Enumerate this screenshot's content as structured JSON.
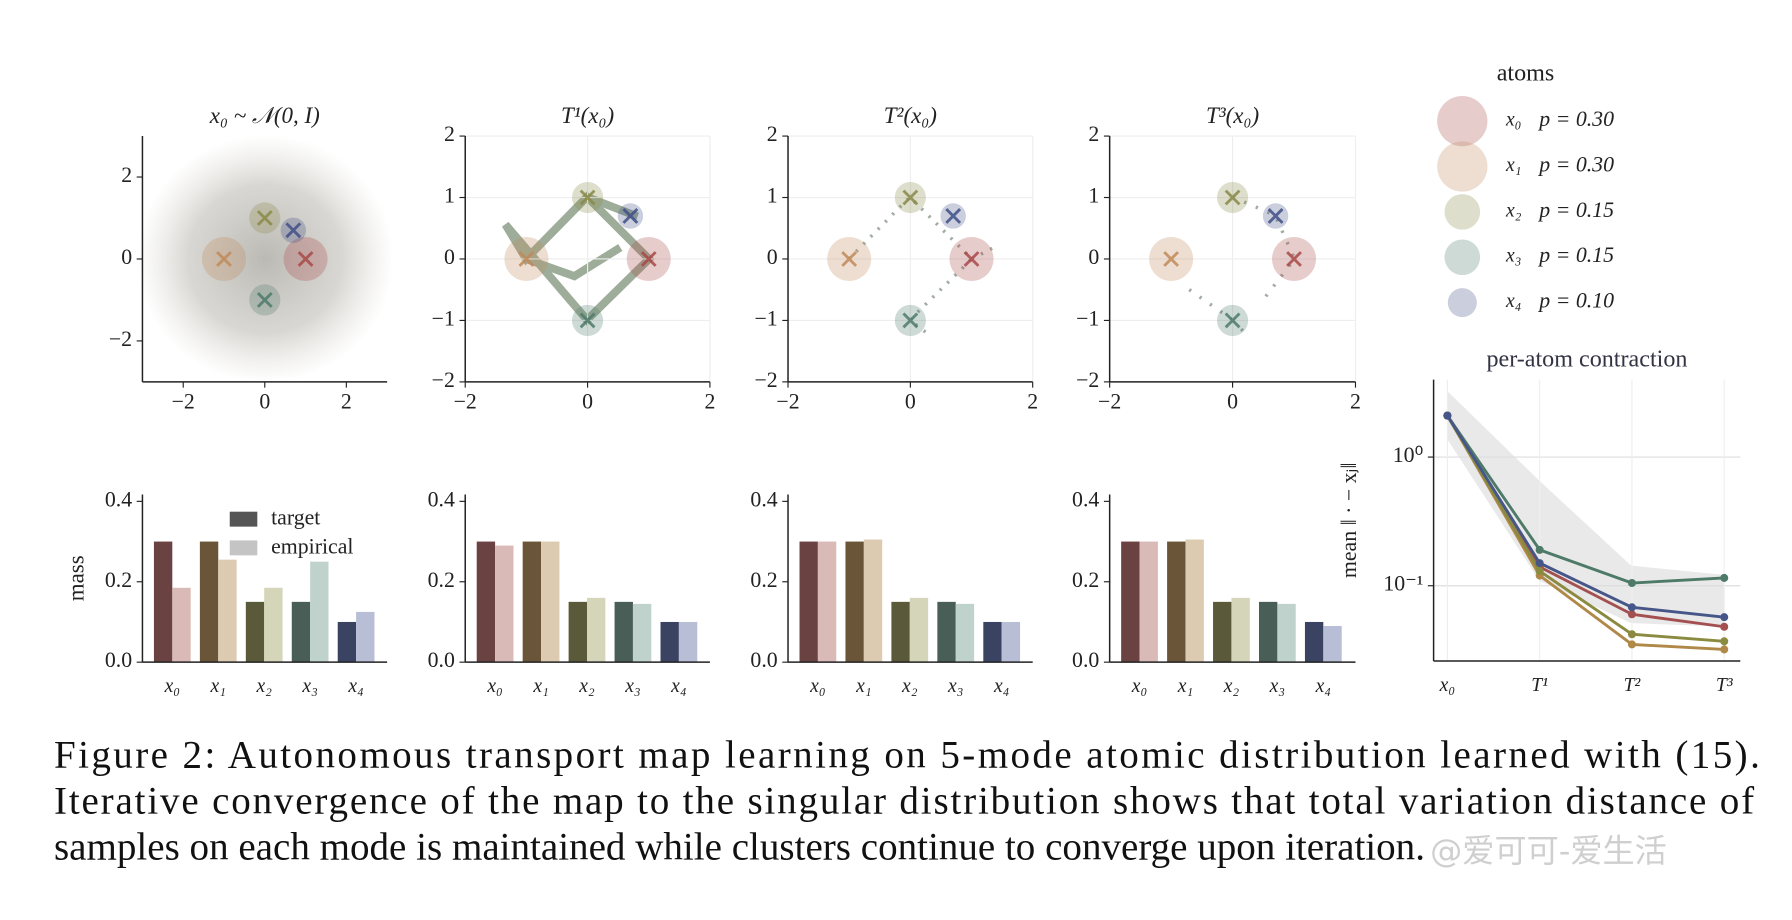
{
  "chart_data": [
    {
      "type": "scatter",
      "title": "x₀ ~ 𝒩(0, I)",
      "x": [
        1,
        -1,
        0,
        0,
        0.7
      ],
      "values": [
        0,
        0,
        1,
        -1,
        0.7
      ],
      "sizes": [
        0.3,
        0.3,
        0.15,
        0.15,
        0.1
      ],
      "colors": [
        "#a84848",
        "#c08a58",
        "#8a8a48",
        "#4e7a6a",
        "#3f4f86"
      ],
      "xlim": [
        -3,
        3
      ],
      "ylim": [
        -3,
        3
      ],
      "xticks": [
        {
          "value": -2,
          "label": "−2"
        },
        0,
        2
      ],
      "yticks": [
        {
          "value": -2,
          "label": "−2"
        },
        0,
        2
      ],
      "grid": false
    },
    {
      "type": "scatter",
      "title": "T¹(x₀)",
      "x": [
        1,
        -1,
        0,
        0,
        0.7
      ],
      "values": [
        0,
        0,
        1,
        -1,
        0.7
      ],
      "sizes": [
        0.3,
        0.3,
        0.15,
        0.15,
        0.1
      ],
      "colors": [
        "#a84848",
        "#c08a58",
        "#8a8a48",
        "#4e7a6a",
        "#3f4f86"
      ],
      "xlim": [
        -2,
        2
      ],
      "ylim": [
        -2,
        2
      ],
      "xticks": [
        {
          "value": -2,
          "label": "−2"
        },
        0,
        2
      ],
      "yticks": [
        {
          "value": -2,
          "label": "−2"
        },
        {
          "value": -1,
          "label": "−1"
        },
        0,
        1,
        2
      ],
      "grid": true
    },
    {
      "type": "scatter",
      "title": "T²(x₀)",
      "x": [
        1,
        -1,
        0,
        0,
        0.7
      ],
      "values": [
        0,
        0,
        1,
        -1,
        0.7
      ],
      "sizes": [
        0.3,
        0.3,
        0.15,
        0.15,
        0.1
      ],
      "colors": [
        "#a84848",
        "#c08a58",
        "#8a8a48",
        "#4e7a6a",
        "#3f4f86"
      ],
      "xlim": [
        -2,
        2
      ],
      "ylim": [
        -2,
        2
      ],
      "xticks": [
        {
          "value": -2,
          "label": "−2"
        },
        0,
        2
      ],
      "yticks": [
        {
          "value": -2,
          "label": "−2"
        },
        {
          "value": -1,
          "label": "−1"
        },
        0,
        1,
        2
      ],
      "grid": true
    },
    {
      "type": "scatter",
      "title": "T³(x₀)",
      "x": [
        1,
        -1,
        0,
        0,
        0.7
      ],
      "values": [
        0,
        0,
        1,
        -1,
        0.7
      ],
      "sizes": [
        0.3,
        0.3,
        0.15,
        0.15,
        0.1
      ],
      "colors": [
        "#a84848",
        "#c08a58",
        "#8a8a48",
        "#4e7a6a",
        "#3f4f86"
      ],
      "xlim": [
        -2,
        2
      ],
      "ylim": [
        -2,
        2
      ],
      "xticks": [
        {
          "value": -2,
          "label": "−2"
        },
        0,
        2
      ],
      "yticks": [
        {
          "value": -2,
          "label": "−2"
        },
        {
          "value": -1,
          "label": "−1"
        },
        0,
        1,
        2
      ],
      "grid": true
    },
    {
      "type": "bar",
      "y_label": "mass",
      "categories": [
        "x₀",
        "x₁",
        "x₂",
        "x₃",
        "x₄"
      ],
      "ylim": [
        0,
        0.4
      ],
      "yticks": [
        {
          "value": 0,
          "label": "0.0"
        },
        {
          "value": 0.2,
          "label": "0.2"
        },
        {
          "value": 0.4,
          "label": "0.4"
        }
      ],
      "legend": "upper right",
      "series": [
        {
          "name": "target",
          "color": "#555555",
          "colors": [
            "#6b4242",
            "#6b5538",
            "#5a5a3a",
            "#4a5e58",
            "#3a4462"
          ],
          "values": [
            0.3,
            0.3,
            0.15,
            0.15,
            0.1
          ]
        },
        {
          "name": "empirical",
          "color": "#c4c4c4",
          "colors": [
            "#d9bab7",
            "#ddcbb1",
            "#d5d5b9",
            "#c0d2cc",
            "#b9bed7"
          ],
          "values": [
            0.185,
            0.255,
            0.185,
            0.25,
            0.125
          ]
        }
      ]
    },
    {
      "type": "bar",
      "categories": [
        "x₀",
        "x₁",
        "x₂",
        "x₃",
        "x₄"
      ],
      "ylim": [
        0,
        0.4
      ],
      "yticks": [
        {
          "value": 0,
          "label": "0.0"
        },
        {
          "value": 0.2,
          "label": "0.2"
        },
        {
          "value": 0.4,
          "label": "0.4"
        }
      ],
      "series": [
        {
          "color": "#555555",
          "colors": [
            "#6b4242",
            "#6b5538",
            "#5a5a3a",
            "#4a5e58",
            "#3a4462"
          ],
          "values": [
            0.3,
            0.3,
            0.15,
            0.15,
            0.1
          ]
        },
        {
          "color": "#c4c4c4",
          "colors": [
            "#d9bab7",
            "#ddcbb1",
            "#d5d5b9",
            "#c0d2cc",
            "#b9bed7"
          ],
          "values": [
            0.29,
            0.3,
            0.16,
            0.145,
            0.1
          ]
        }
      ]
    },
    {
      "type": "bar",
      "categories": [
        "x₀",
        "x₁",
        "x₂",
        "x₃",
        "x₄"
      ],
      "ylim": [
        0,
        0.4
      ],
      "yticks": [
        {
          "value": 0,
          "label": "0.0"
        },
        {
          "value": 0.2,
          "label": "0.2"
        },
        {
          "value": 0.4,
          "label": "0.4"
        }
      ],
      "series": [
        {
          "color": "#555555",
          "colors": [
            "#6b4242",
            "#6b5538",
            "#5a5a3a",
            "#4a5e58",
            "#3a4462"
          ],
          "values": [
            0.3,
            0.3,
            0.15,
            0.15,
            0.1
          ]
        },
        {
          "color": "#c4c4c4",
          "colors": [
            "#d9bab7",
            "#ddcbb1",
            "#d5d5b9",
            "#c0d2cc",
            "#b9bed7"
          ],
          "values": [
            0.3,
            0.305,
            0.16,
            0.145,
            0.1
          ]
        }
      ]
    },
    {
      "type": "bar",
      "categories": [
        "x₀",
        "x₁",
        "x₂",
        "x₃",
        "x₄"
      ],
      "ylim": [
        0,
        0.4
      ],
      "yticks": [
        {
          "value": 0,
          "label": "0.0"
        },
        {
          "value": 0.2,
          "label": "0.2"
        },
        {
          "value": 0.4,
          "label": "0.4"
        }
      ],
      "series": [
        {
          "color": "#555555",
          "colors": [
            "#6b4242",
            "#6b5538",
            "#5a5a3a",
            "#4a5e58",
            "#3a4462"
          ],
          "values": [
            0.3,
            0.3,
            0.15,
            0.15,
            0.1
          ]
        },
        {
          "color": "#c4c4c4",
          "colors": [
            "#d9bab7",
            "#ddcbb1",
            "#d5d5b9",
            "#c0d2cc",
            "#b9bed7"
          ],
          "values": [
            0.3,
            0.305,
            0.16,
            0.145,
            0.09
          ]
        }
      ]
    },
    {
      "type": "bubble-legend",
      "title": "atoms",
      "categories": [
        "x₀",
        "x₁",
        "x₂",
        "x₃",
        "x₄"
      ],
      "values": [
        0.3,
        0.3,
        0.15,
        0.15,
        0.1
      ],
      "value_labels": [
        "p = 0.30",
        "p = 0.30",
        "p = 0.15",
        "p = 0.15",
        "p = 0.10"
      ],
      "colors": [
        "#a84848",
        "#c08a58",
        "#8a8a48",
        "#4e7a6a",
        "#3f4f86"
      ]
    },
    {
      "type": "line",
      "title": "per-atom contraction",
      "y_label": "mean ‖ · − xⱼ‖",
      "log_y": true,
      "grid": true,
      "categories": [
        "x₀",
        "T¹",
        "T²",
        "T³"
      ],
      "ylim": [
        0.026,
        4
      ],
      "yticks": [
        {
          "value": 1,
          "label": "10⁰"
        },
        {
          "value": 0.1,
          "label": "10⁻¹"
        }
      ],
      "series": [
        {
          "color": "#a45050",
          "values": [
            2.1,
            0.14,
            0.06,
            0.048
          ]
        },
        {
          "color": "#b08848",
          "values": [
            2.1,
            0.12,
            0.035,
            0.032
          ]
        },
        {
          "color": "#8a8a40",
          "values": [
            2.1,
            0.13,
            0.042,
            0.037
          ]
        },
        {
          "color": "#4e7a68",
          "values": [
            2.1,
            0.19,
            0.105,
            0.115
          ]
        },
        {
          "color": "#465688",
          "values": [
            2.1,
            0.15,
            0.068,
            0.057
          ]
        }
      ]
    }
  ],
  "caption": {
    "lines": [
      "Figure 2:  Autonomous transport map learning on 5-mode atomic distribution learned with (15).",
      "Iterative convergence of the map to the singular distribution shows that total variation distance of",
      "samples on each mode is maintained while clusters continue to converge upon iteration."
    ]
  },
  "watermark": "@爱可可-爱生活"
}
